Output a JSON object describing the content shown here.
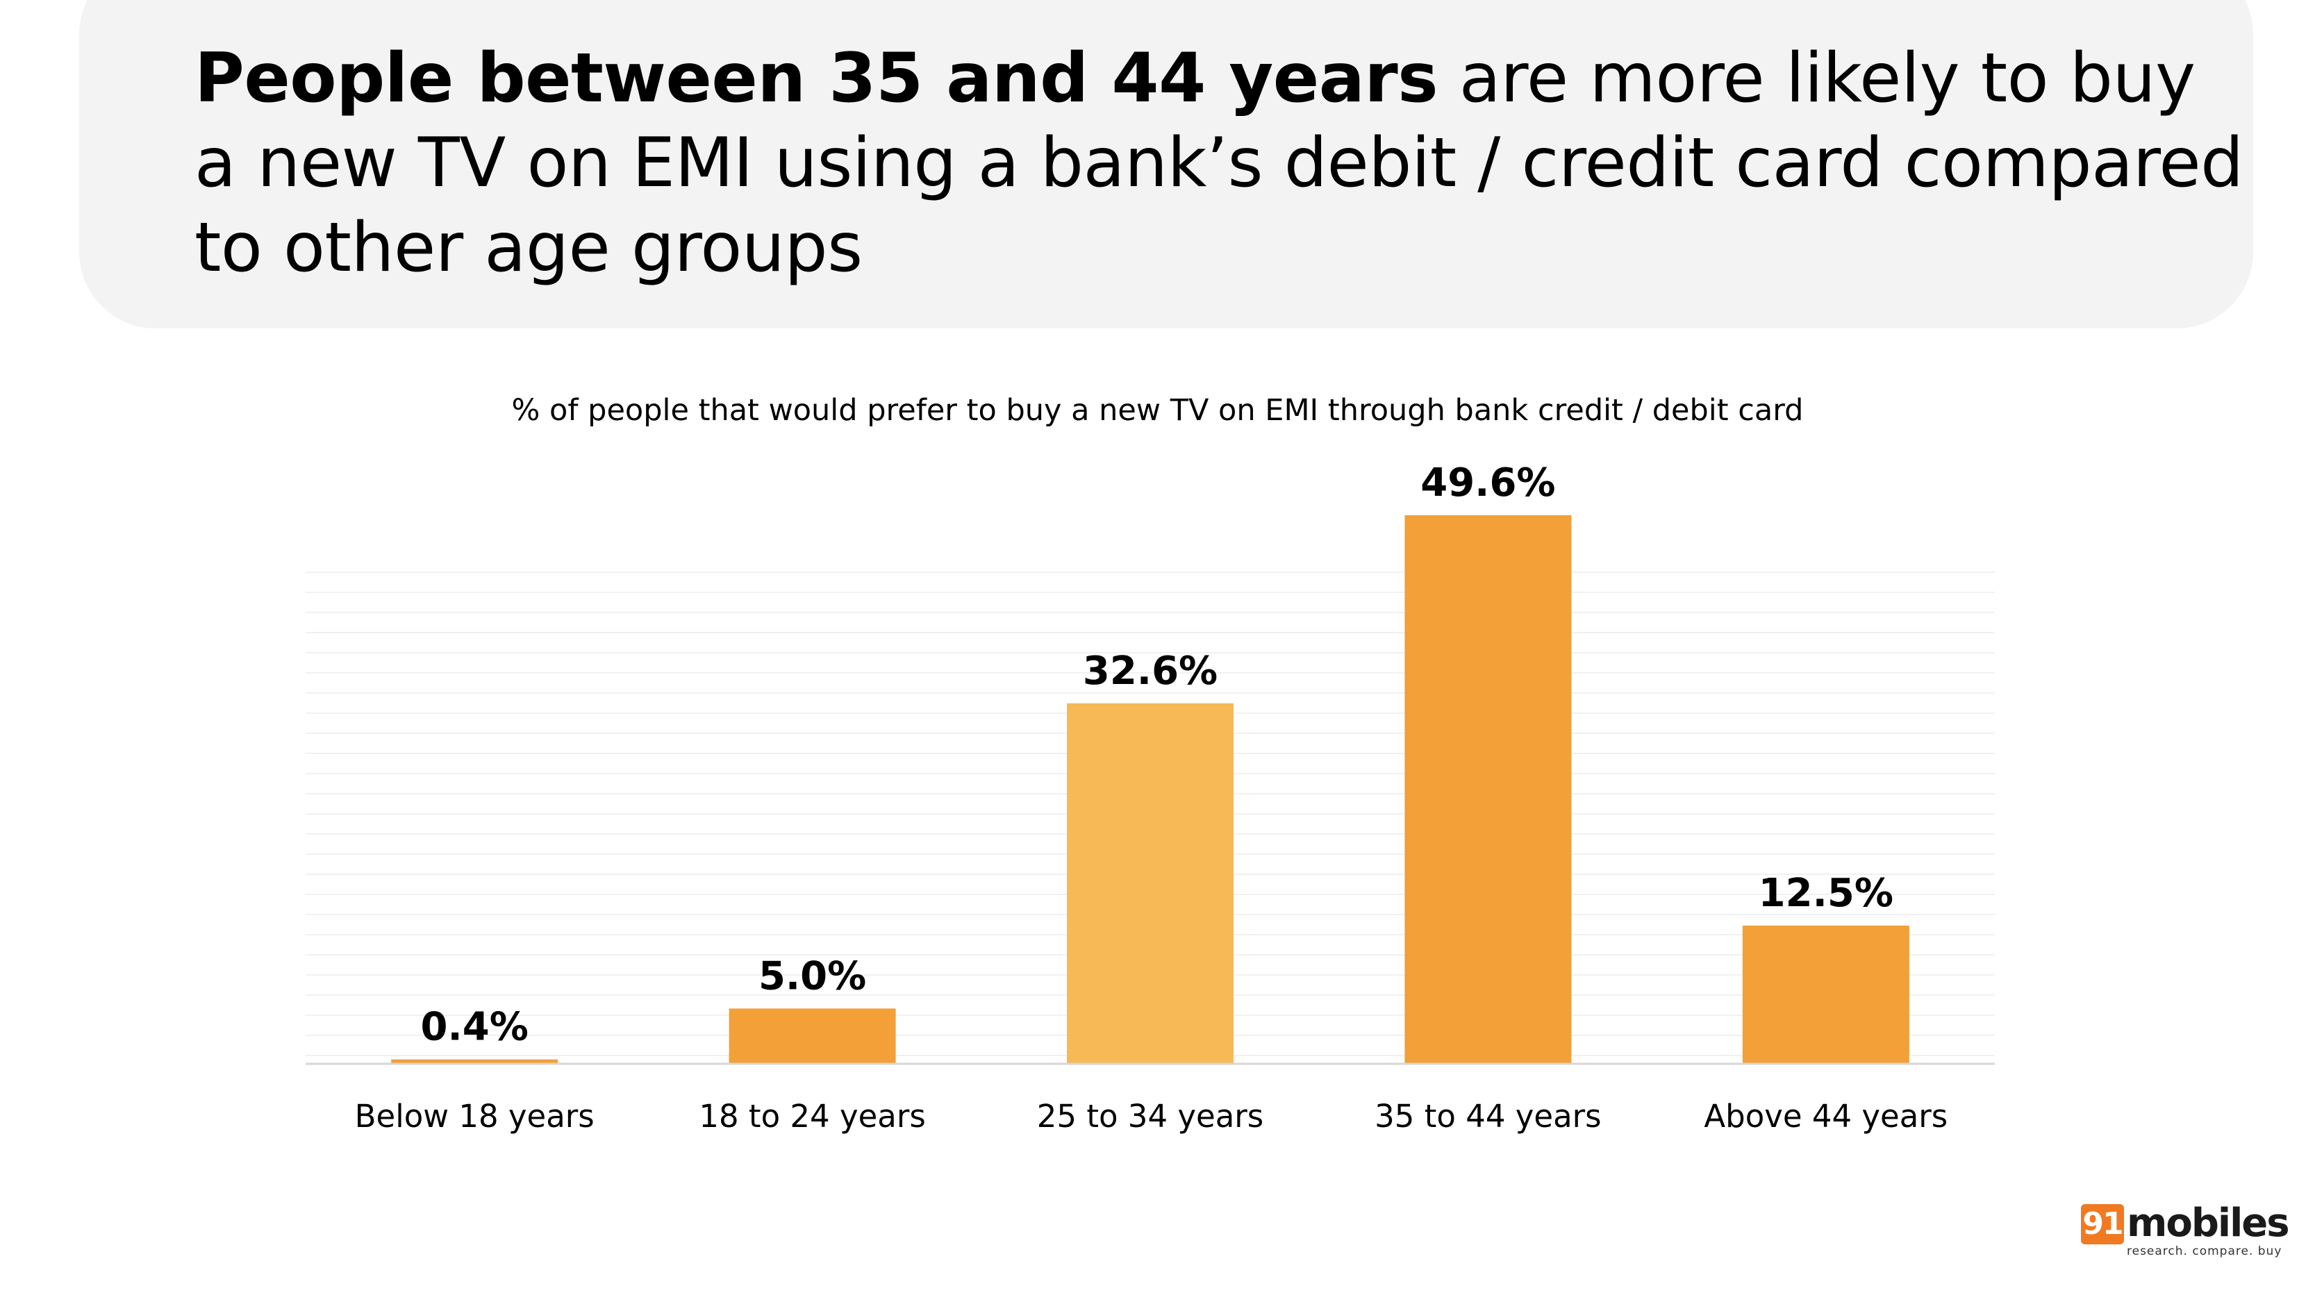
{
  "header": {
    "headline_bold": "People between 35 and 44 years",
    "headline_rest": " are more likely to buy a new TV on EMI using a bank’s debit / credit card compared to other age groups"
  },
  "logo": {
    "badge": "91",
    "word": "mobiles",
    "tagline": "research. compare. buy"
  },
  "chart_data": {
    "type": "bar",
    "title": "% of people that would prefer to buy a new TV on EMI through bank credit / debit card",
    "categories": [
      "Below 18 years",
      "18 to 24 years",
      "25 to 34 years",
      "35 to 44 years",
      "Above 44 years"
    ],
    "values": [
      0.4,
      5.0,
      32.6,
      49.6,
      12.5
    ],
    "value_labels": [
      "0.4%",
      "5.0%",
      "32.6%",
      "49.6%",
      "12.5%"
    ],
    "bar_colors": [
      "#f2a037",
      "#f2a037",
      "#f6b955",
      "#f2a037",
      "#f2a037"
    ],
    "ylim": [
      0,
      49.6
    ],
    "grid": true,
    "legend": "none"
  }
}
